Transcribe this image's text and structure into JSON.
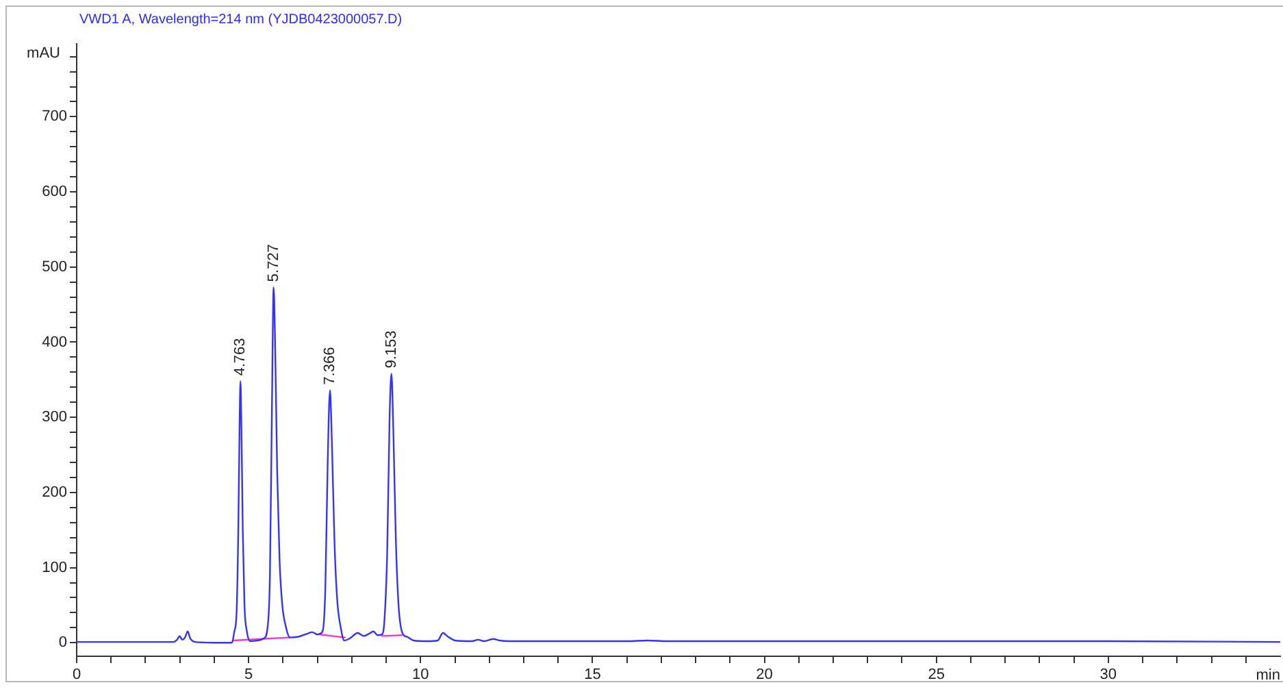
{
  "chart_data": {
    "type": "line",
    "title": "VWD1 A, Wavelength=214 nm (YJDB0423000057.D)",
    "xlabel": "min",
    "ylabel": "mAU",
    "xlim": [
      0,
      35
    ],
    "ylim": [
      -18,
      797
    ],
    "xticks": [
      0,
      {
        "value": 1,
        "label": null
      },
      {
        "value": 2,
        "label": null
      },
      {
        "value": 3,
        "label": null
      },
      {
        "value": 4,
        "label": null
      },
      5,
      {
        "value": 6,
        "label": null
      },
      {
        "value": 7,
        "label": null
      },
      {
        "value": 8,
        "label": null
      },
      {
        "value": 9,
        "label": null
      },
      10,
      {
        "value": 11,
        "label": null
      },
      {
        "value": 12,
        "label": null
      },
      {
        "value": 13,
        "label": null
      },
      {
        "value": 14,
        "label": null
      },
      15,
      {
        "value": 16,
        "label": null
      },
      {
        "value": 17,
        "label": null
      },
      {
        "value": 18,
        "label": null
      },
      {
        "value": 19,
        "label": null
      },
      20,
      {
        "value": 21,
        "label": null
      },
      {
        "value": 22,
        "label": null
      },
      {
        "value": 23,
        "label": null
      },
      {
        "value": 24,
        "label": null
      },
      25,
      {
        "value": 26,
        "label": null
      },
      {
        "value": 27,
        "label": null
      },
      {
        "value": 28,
        "label": null
      },
      {
        "value": 29,
        "label": null
      },
      30,
      {
        "value": 31,
        "label": null
      },
      {
        "value": 32,
        "label": null
      },
      {
        "value": 33,
        "label": null
      },
      {
        "value": 34,
        "label": null
      }
    ],
    "yticks": [
      0,
      {
        "value": 20,
        "label": null
      },
      {
        "value": 40,
        "label": null
      },
      {
        "value": 60,
        "label": null
      },
      {
        "value": 80,
        "label": null
      },
      100,
      {
        "value": 120,
        "label": null
      },
      {
        "value": 140,
        "label": null
      },
      {
        "value": 160,
        "label": null
      },
      {
        "value": 180,
        "label": null
      },
      200,
      {
        "value": 220,
        "label": null
      },
      {
        "value": 240,
        "label": null
      },
      {
        "value": 260,
        "label": null
      },
      {
        "value": 280,
        "label": null
      },
      300,
      {
        "value": 320,
        "label": null
      },
      {
        "value": 340,
        "label": null
      },
      {
        "value": 360,
        "label": null
      },
      {
        "value": 380,
        "label": null
      },
      400,
      {
        "value": 420,
        "label": null
      },
      {
        "value": 440,
        "label": null
      },
      {
        "value": 460,
        "label": null
      },
      {
        "value": 480,
        "label": null
      },
      500,
      {
        "value": 520,
        "label": null
      },
      {
        "value": 540,
        "label": null
      },
      {
        "value": 560,
        "label": null
      },
      {
        "value": 580,
        "label": null
      },
      600,
      {
        "value": 620,
        "label": null
      },
      {
        "value": 640,
        "label": null
      },
      {
        "value": 660,
        "label": null
      },
      {
        "value": 680,
        "label": null
      },
      700,
      {
        "value": 720,
        "label": null
      },
      {
        "value": 740,
        "label": null
      },
      {
        "value": 760,
        "label": null
      },
      {
        "value": 780,
        "label": null
      }
    ],
    "grid": false,
    "legend": false,
    "marker": "none",
    "series": [
      {
        "color": "#3333ff",
        "x": [
          0,
          2.8,
          2.92,
          2.99,
          3.07,
          3.15,
          3.23,
          3.3,
          3.45,
          4.0,
          4.5,
          4.54,
          4.58,
          4.65,
          4.7,
          4.74,
          4.763,
          4.79,
          4.83,
          4.88,
          4.95,
          5.05,
          5.25,
          5.45,
          5.55,
          5.62,
          5.68,
          5.727,
          5.77,
          5.83,
          5.9,
          5.98,
          6.08,
          6.2,
          6.45,
          6.7,
          6.85,
          7.0,
          7.07,
          7.15,
          7.23,
          7.3,
          7.366,
          7.42,
          7.5,
          7.58,
          7.68,
          7.78,
          7.95,
          8.17,
          8.35,
          8.5,
          8.63,
          8.75,
          8.88,
          8.95,
          9.03,
          9.1,
          9.153,
          9.21,
          9.28,
          9.36,
          9.48,
          9.6,
          9.8,
          10.2,
          10.5,
          10.65,
          10.8,
          11.0,
          11.5,
          11.67,
          11.85,
          12.11,
          12.3,
          12.6,
          16.0,
          16.6,
          17.2,
          30,
          35
        ],
        "values": [
          1,
          1,
          4,
          9,
          4,
          7,
          15,
          6,
          1,
          0,
          0,
          3,
          14,
          40,
          150,
          300,
          348,
          290,
          150,
          50,
          15,
          2,
          3,
          6,
          20,
          90,
          320,
          473,
          400,
          230,
          110,
          50,
          22,
          7,
          8,
          12,
          14,
          11,
          12,
          15,
          70,
          240,
          336,
          270,
          130,
          55,
          20,
          3,
          6,
          13,
          9,
          12,
          15,
          10,
          11,
          30,
          120,
          300,
          358,
          280,
          140,
          50,
          12,
          8,
          3,
          2,
          3,
          13,
          8,
          3,
          2,
          4,
          2,
          5,
          3,
          2,
          2,
          3,
          2,
          2,
          1
        ]
      },
      {
        "color": "#ff33cc",
        "x": [
          4.54,
          6.2,
          6.6,
          7.07,
          7.8,
          8.3,
          8.88,
          9.45
        ],
        "values": [
          3,
          7,
          null,
          11,
          7,
          null,
          9,
          10
        ]
      }
    ],
    "annotations": [
      {
        "text": "4.763",
        "x": 4.763,
        "y": 348
      },
      {
        "text": "5.727",
        "x": 5.727,
        "y": 473
      },
      {
        "text": "7.366",
        "x": 7.366,
        "y": 336
      },
      {
        "text": "9.153",
        "x": 9.153,
        "y": 358
      }
    ]
  }
}
